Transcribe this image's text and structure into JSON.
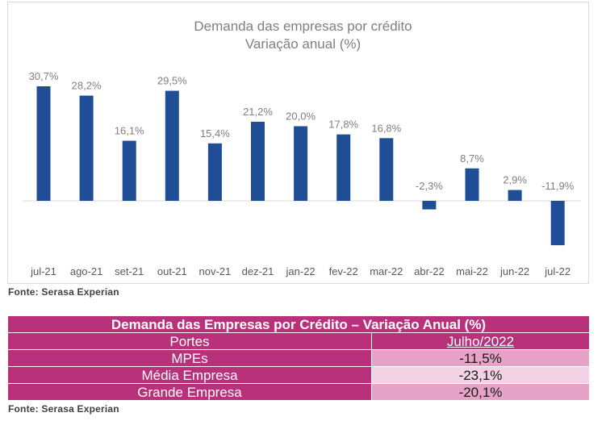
{
  "chart_data": {
    "type": "bar",
    "title": "Demanda das empresas por crédito",
    "subtitle": "Variação anual (%)",
    "categories": [
      "jul-21",
      "ago-21",
      "set-21",
      "out-21",
      "nov-21",
      "dez-21",
      "jan-22",
      "fev-22",
      "mar-22",
      "abr-22",
      "mai-22",
      "jun-22",
      "jul-22"
    ],
    "values": [
      30.7,
      28.2,
      16.1,
      29.5,
      15.4,
      21.2,
      20.0,
      17.8,
      16.8,
      -2.3,
      8.7,
      2.9,
      -11.9
    ],
    "data_labels": [
      "30,7%",
      "28,2%",
      "16,1%",
      "29,5%",
      "15,4%",
      "21,2%",
      "20,0%",
      "17,8%",
      "16,8%",
      "-2,3%",
      "8,7%",
      "2,9%",
      "-11,9%"
    ],
    "bar_color": "#1f4e96",
    "label_color": "#7f7f7f",
    "grid": false,
    "legend": "none"
  },
  "chart_source": "Fonte: Serasa Experian",
  "table": {
    "title": "Demanda das Empresas por Crédito – Variação Anual (%)",
    "col_headers": [
      "Portes",
      "Julho/2022"
    ],
    "rows": [
      {
        "name": "MPEs",
        "value": "-11,5%",
        "color": "#e5a3c8"
      },
      {
        "name": "Média Empresa",
        "value": "-23,1%",
        "color": "#f2d2e4"
      },
      {
        "name": "Grande Empresa",
        "value": "-20,1%",
        "color": "#e5a3c8"
      }
    ],
    "accent_color": "#b8317a"
  },
  "table_source": "Fonte: Serasa Experian"
}
